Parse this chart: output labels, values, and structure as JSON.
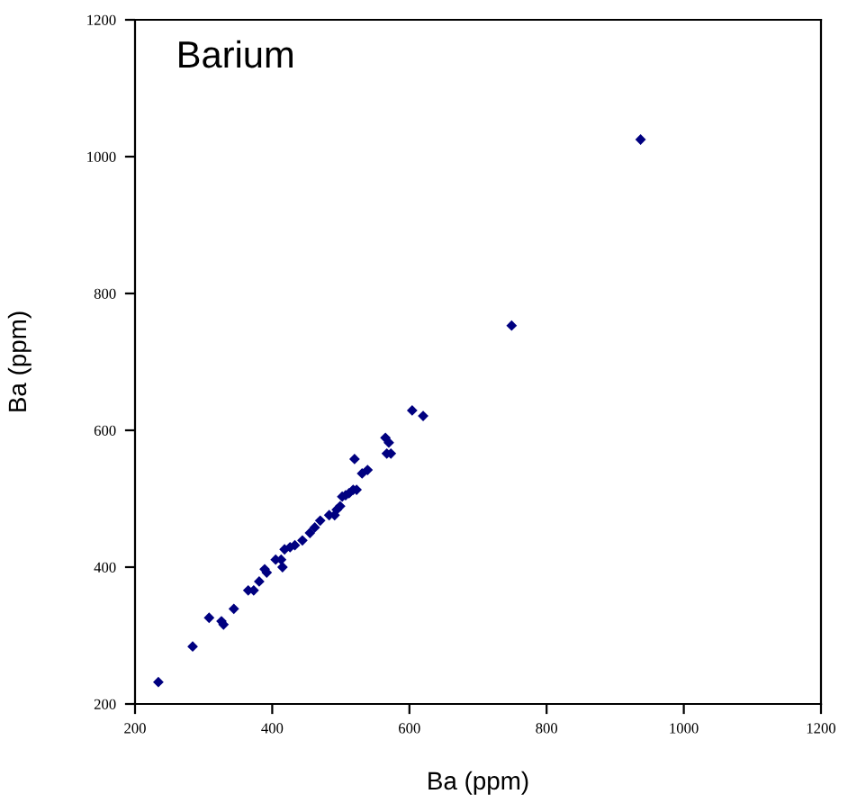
{
  "chart_data": {
    "type": "scatter",
    "xlabel": "Ba (ppm)",
    "ylabel": "Ba (ppm)",
    "annotations": [
      "Barium"
    ],
    "x": [
      234,
      284,
      308,
      326,
      329,
      344,
      365,
      373,
      381,
      389,
      392,
      405,
      413,
      415,
      418,
      426,
      433,
      444,
      455,
      462,
      470,
      478,
      483,
      491,
      494,
      499,
      502,
      507,
      512,
      518,
      523,
      531,
      539,
      520,
      565,
      570,
      567,
      573,
      604,
      620,
      749,
      937
    ],
    "series": [
      {
        "color": "#000080",
        "values": [
          232,
          284,
          326,
          321,
          316,
          339,
          366,
          366,
          379,
          397,
          392,
          411,
          411,
          400,
          426,
          429,
          432,
          439,
          450,
          458,
          468,
          null,
          476,
          476,
          484,
          489,
          503,
          505,
          508,
          513,
          513,
          537,
          542,
          558,
          589,
          582,
          566,
          566,
          629,
          621,
          753,
          1025
        ]
      }
    ],
    "xlim": [
      200,
      1200
    ],
    "ylim": [
      200,
      1200
    ],
    "xticks": [
      200,
      400,
      600,
      800,
      1000,
      1200
    ],
    "yticks": [
      200,
      400,
      600,
      800,
      1000,
      1200
    ],
    "marker": "diamond",
    "grid": false,
    "legend": false
  }
}
